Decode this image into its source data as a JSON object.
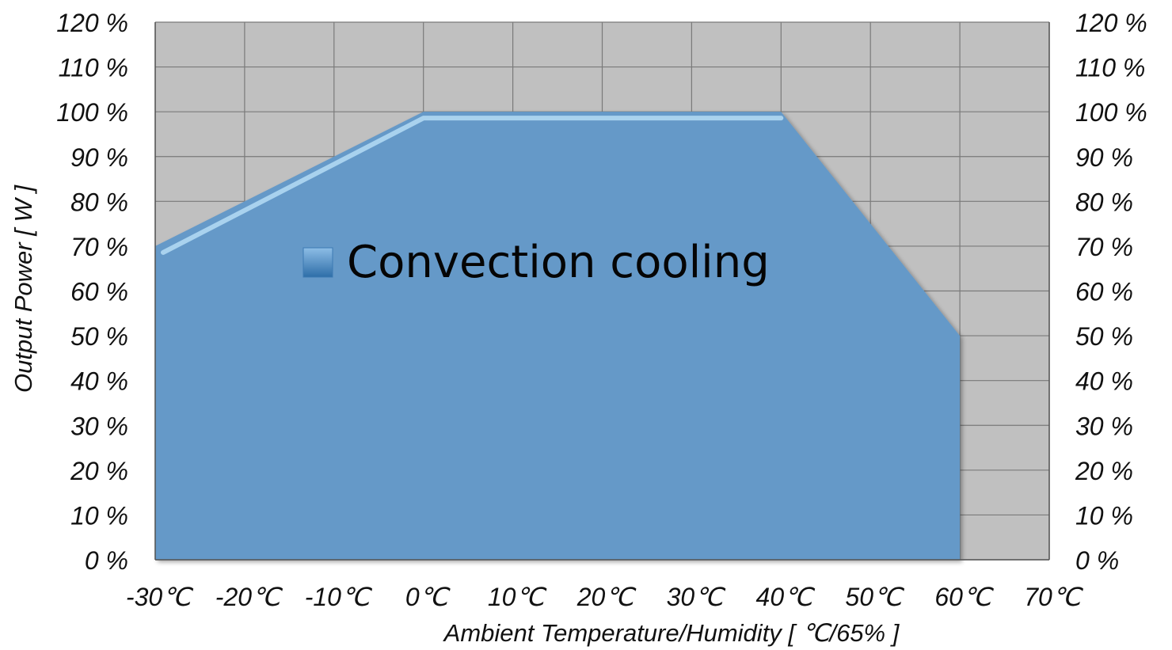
{
  "chart_data": {
    "type": "area",
    "series": [
      {
        "name": "Convection cooling",
        "x": [
          -30,
          0,
          40,
          60
        ],
        "values": [
          70,
          100,
          100,
          50
        ],
        "color": "#6599c8"
      }
    ],
    "xlabel": "Ambient Temperature/Humidity [ ℃/65% ]",
    "ylabel": "Output Power [ W ]",
    "xlim": [
      -30,
      70
    ],
    "ylim": [
      0,
      120
    ],
    "x_ticks": [
      -30,
      -20,
      -10,
      0,
      10,
      20,
      30,
      40,
      50,
      60,
      70
    ],
    "y_ticks": [
      0,
      10,
      20,
      30,
      40,
      50,
      60,
      70,
      80,
      90,
      100,
      110,
      120
    ],
    "x_tick_labels": [
      "-30℃",
      "-20℃",
      "-10℃",
      "0℃",
      "10℃",
      "20℃",
      "30℃",
      "40℃",
      "50℃",
      "60℃",
      "70℃"
    ],
    "y_tick_labels": [
      "0 %",
      "10 %",
      "20 %",
      "30 %",
      "40 %",
      "50 %",
      "60 %",
      "70 %",
      "80 %",
      "90 %",
      "100 %",
      "110 %",
      "120 %"
    ],
    "y_axis_right_labels": true,
    "grid": true,
    "legend_position": "center-left inside plot",
    "plot_background": "#c0c0c0",
    "grid_color": "#7a7a7a"
  }
}
